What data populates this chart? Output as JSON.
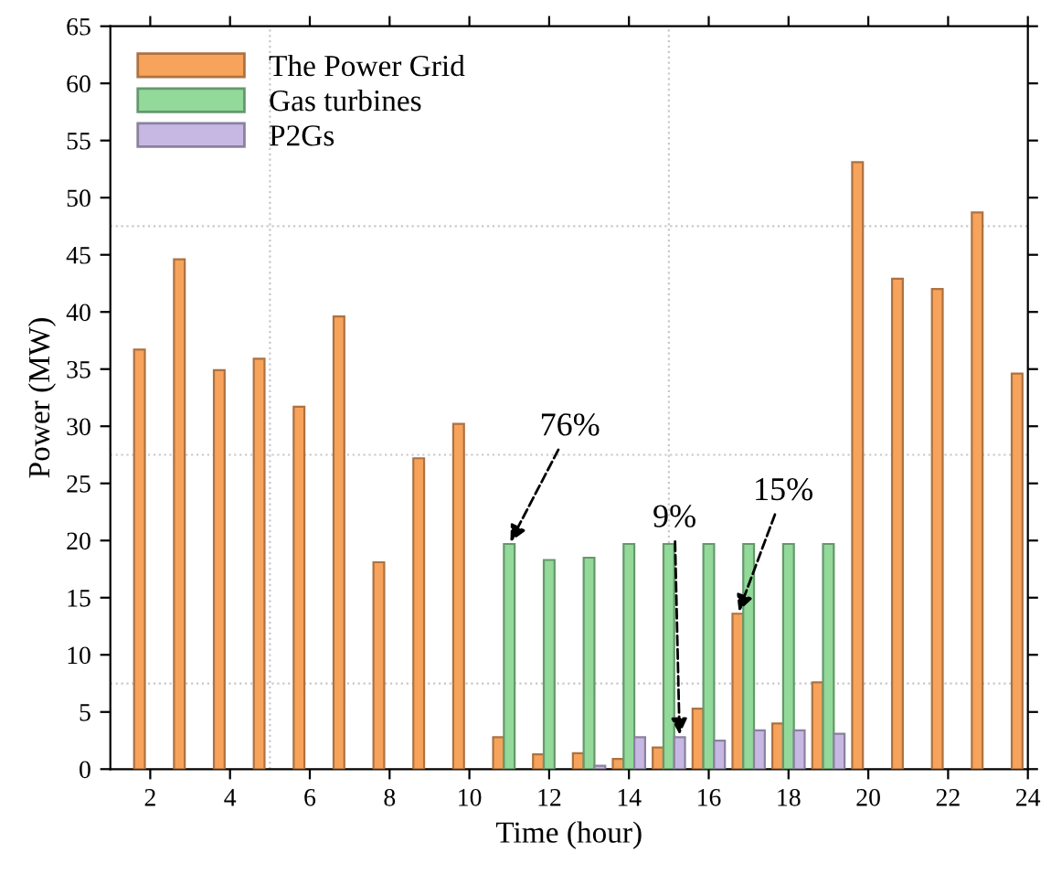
{
  "chart_data": {
    "type": "bar",
    "xlabel": "Time (hour)",
    "ylabel": "Power (MW)",
    "xlim": [
      1,
      24
    ],
    "xticks": [
      2,
      4,
      6,
      8,
      10,
      12,
      14,
      16,
      18,
      20,
      22,
      24
    ],
    "ylim": [
      0,
      65
    ],
    "yticks": [
      0,
      5,
      10,
      15,
      20,
      25,
      30,
      35,
      40,
      45,
      50,
      55,
      60,
      65
    ],
    "grid": false,
    "legend": "top left",
    "series": [
      {
        "name": "The Power Grid",
        "color": "#f7a35c",
        "x": [
          2,
          3,
          4,
          5,
          6,
          7,
          8,
          9,
          10,
          11,
          12,
          13,
          14,
          15,
          16,
          17,
          18,
          19,
          20,
          21,
          22,
          23,
          24
        ],
        "values": [
          36.7,
          44.6,
          34.9,
          35.9,
          31.7,
          39.6,
          18.1,
          27.2,
          30.2,
          2.8,
          1.3,
          1.4,
          0.9,
          1.9,
          5.3,
          13.6,
          4.0,
          7.6,
          53.1,
          42.9,
          42.0,
          48.7,
          34.6
        ]
      },
      {
        "name": "Gas turbines",
        "color": "#92d99a",
        "x": [
          11,
          12,
          13,
          14,
          15,
          16,
          17,
          18,
          19
        ],
        "values": [
          19.7,
          18.3,
          18.5,
          19.7,
          19.7,
          19.7,
          19.7,
          19.7,
          19.7
        ]
      },
      {
        "name": "P2Gs",
        "color": "#c7b8e3",
        "x": [
          13,
          14,
          15,
          16,
          17,
          18,
          19
        ],
        "values": [
          0.3,
          2.8,
          2.8,
          2.5,
          3.4,
          3.4,
          3.1
        ]
      }
    ],
    "ref_lines": [
      {
        "axis": "y",
        "value": 7.5,
        "color": "#c8c8c8",
        "line_style": "dotted"
      },
      {
        "axis": "y",
        "value": 27.5,
        "color": "#c8c8c8",
        "line_style": "dotted"
      },
      {
        "axis": "y",
        "value": 47.5,
        "color": "#c8c8c8",
        "line_style": "dotted"
      },
      {
        "axis": "x",
        "value": 5,
        "color": "#c8c8c8",
        "line_style": "dotted"
      },
      {
        "axis": "x",
        "value": 15,
        "color": "#c8c8c8",
        "line_style": "dotted"
      }
    ],
    "annotations": [
      {
        "text": "76%",
        "x": 11,
        "y": 19.7
      },
      {
        "text": "9%",
        "x": 15.27,
        "y": 2.8
      },
      {
        "text": "15%",
        "x": 16.73,
        "y": 13.6
      }
    ]
  }
}
